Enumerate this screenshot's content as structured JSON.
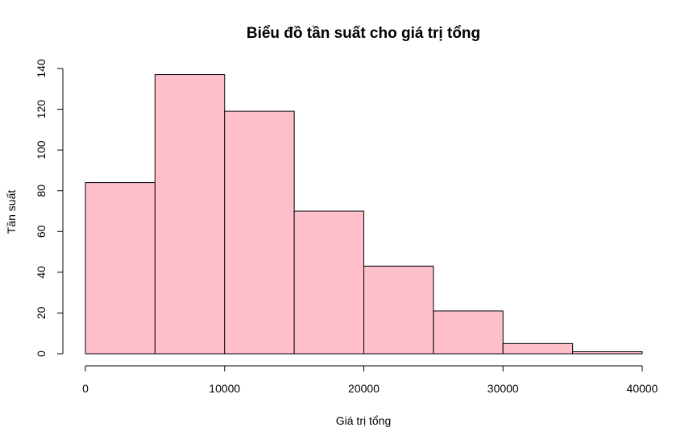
{
  "chart_data": {
    "type": "bar",
    "title": "Biểu đồ tần suất cho giá trị tổng",
    "xlabel": "Giá trị tổng",
    "ylabel": "Tần suất",
    "bins": [
      {
        "from": 0,
        "to": 5000,
        "count": 84
      },
      {
        "from": 5000,
        "to": 10000,
        "count": 137
      },
      {
        "from": 10000,
        "to": 15000,
        "count": 119
      },
      {
        "from": 15000,
        "to": 20000,
        "count": 70
      },
      {
        "from": 20000,
        "to": 25000,
        "count": 43
      },
      {
        "from": 25000,
        "to": 30000,
        "count": 21
      },
      {
        "from": 30000,
        "to": 35000,
        "count": 5
      },
      {
        "from": 35000,
        "to": 40000,
        "count": 1
      }
    ],
    "xlim": [
      0,
      40000
    ],
    "ylim": [
      0,
      140
    ],
    "xticks": [
      0,
      10000,
      20000,
      30000,
      40000
    ],
    "xtick_labels": [
      "0",
      "10000",
      "20000",
      "30000",
      "40000"
    ],
    "yticks": [
      0,
      20,
      40,
      60,
      80,
      100,
      120,
      140
    ],
    "ytick_labels": [
      "0",
      "20",
      "40",
      "60",
      "80",
      "100",
      "120",
      "140"
    ],
    "grid": false,
    "legend": "none",
    "colors": {
      "bar_fill": "#FFC0CB",
      "bar_stroke": "#000000"
    }
  }
}
